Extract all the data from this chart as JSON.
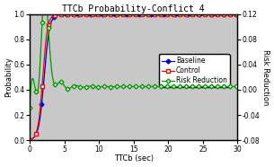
{
  "title": "TTCb Probability-Conflict 4",
  "xlabel": "TTCb (sec)",
  "ylabel_left": "Probability",
  "ylabel_right": "Risk Reduction",
  "xlim": [
    0,
    30
  ],
  "ylim_left": [
    0.0,
    1.0
  ],
  "ylim_right": [
    -0.08,
    0.12
  ],
  "yticks_left": [
    0.0,
    0.2,
    0.4,
    0.6,
    0.8,
    1.0
  ],
  "yticks_right": [
    -0.08,
    -0.04,
    0.0,
    0.04,
    0.08,
    0.12
  ],
  "xticks": [
    0,
    5,
    10,
    15,
    20,
    25,
    30
  ],
  "baseline_color": "#0000CC",
  "control_color": "#FF0000",
  "risk_color": "#009900",
  "bg_color": "#C8C8C8",
  "legend_labels": [
    "Baseline",
    "Control",
    "Risk Reduction"
  ],
  "title_fontsize": 7,
  "axis_fontsize": 6,
  "tick_fontsize": 5.5,
  "legend_fontsize": 5.5,
  "figsize": [
    3.05,
    1.86
  ],
  "dpi": 100
}
